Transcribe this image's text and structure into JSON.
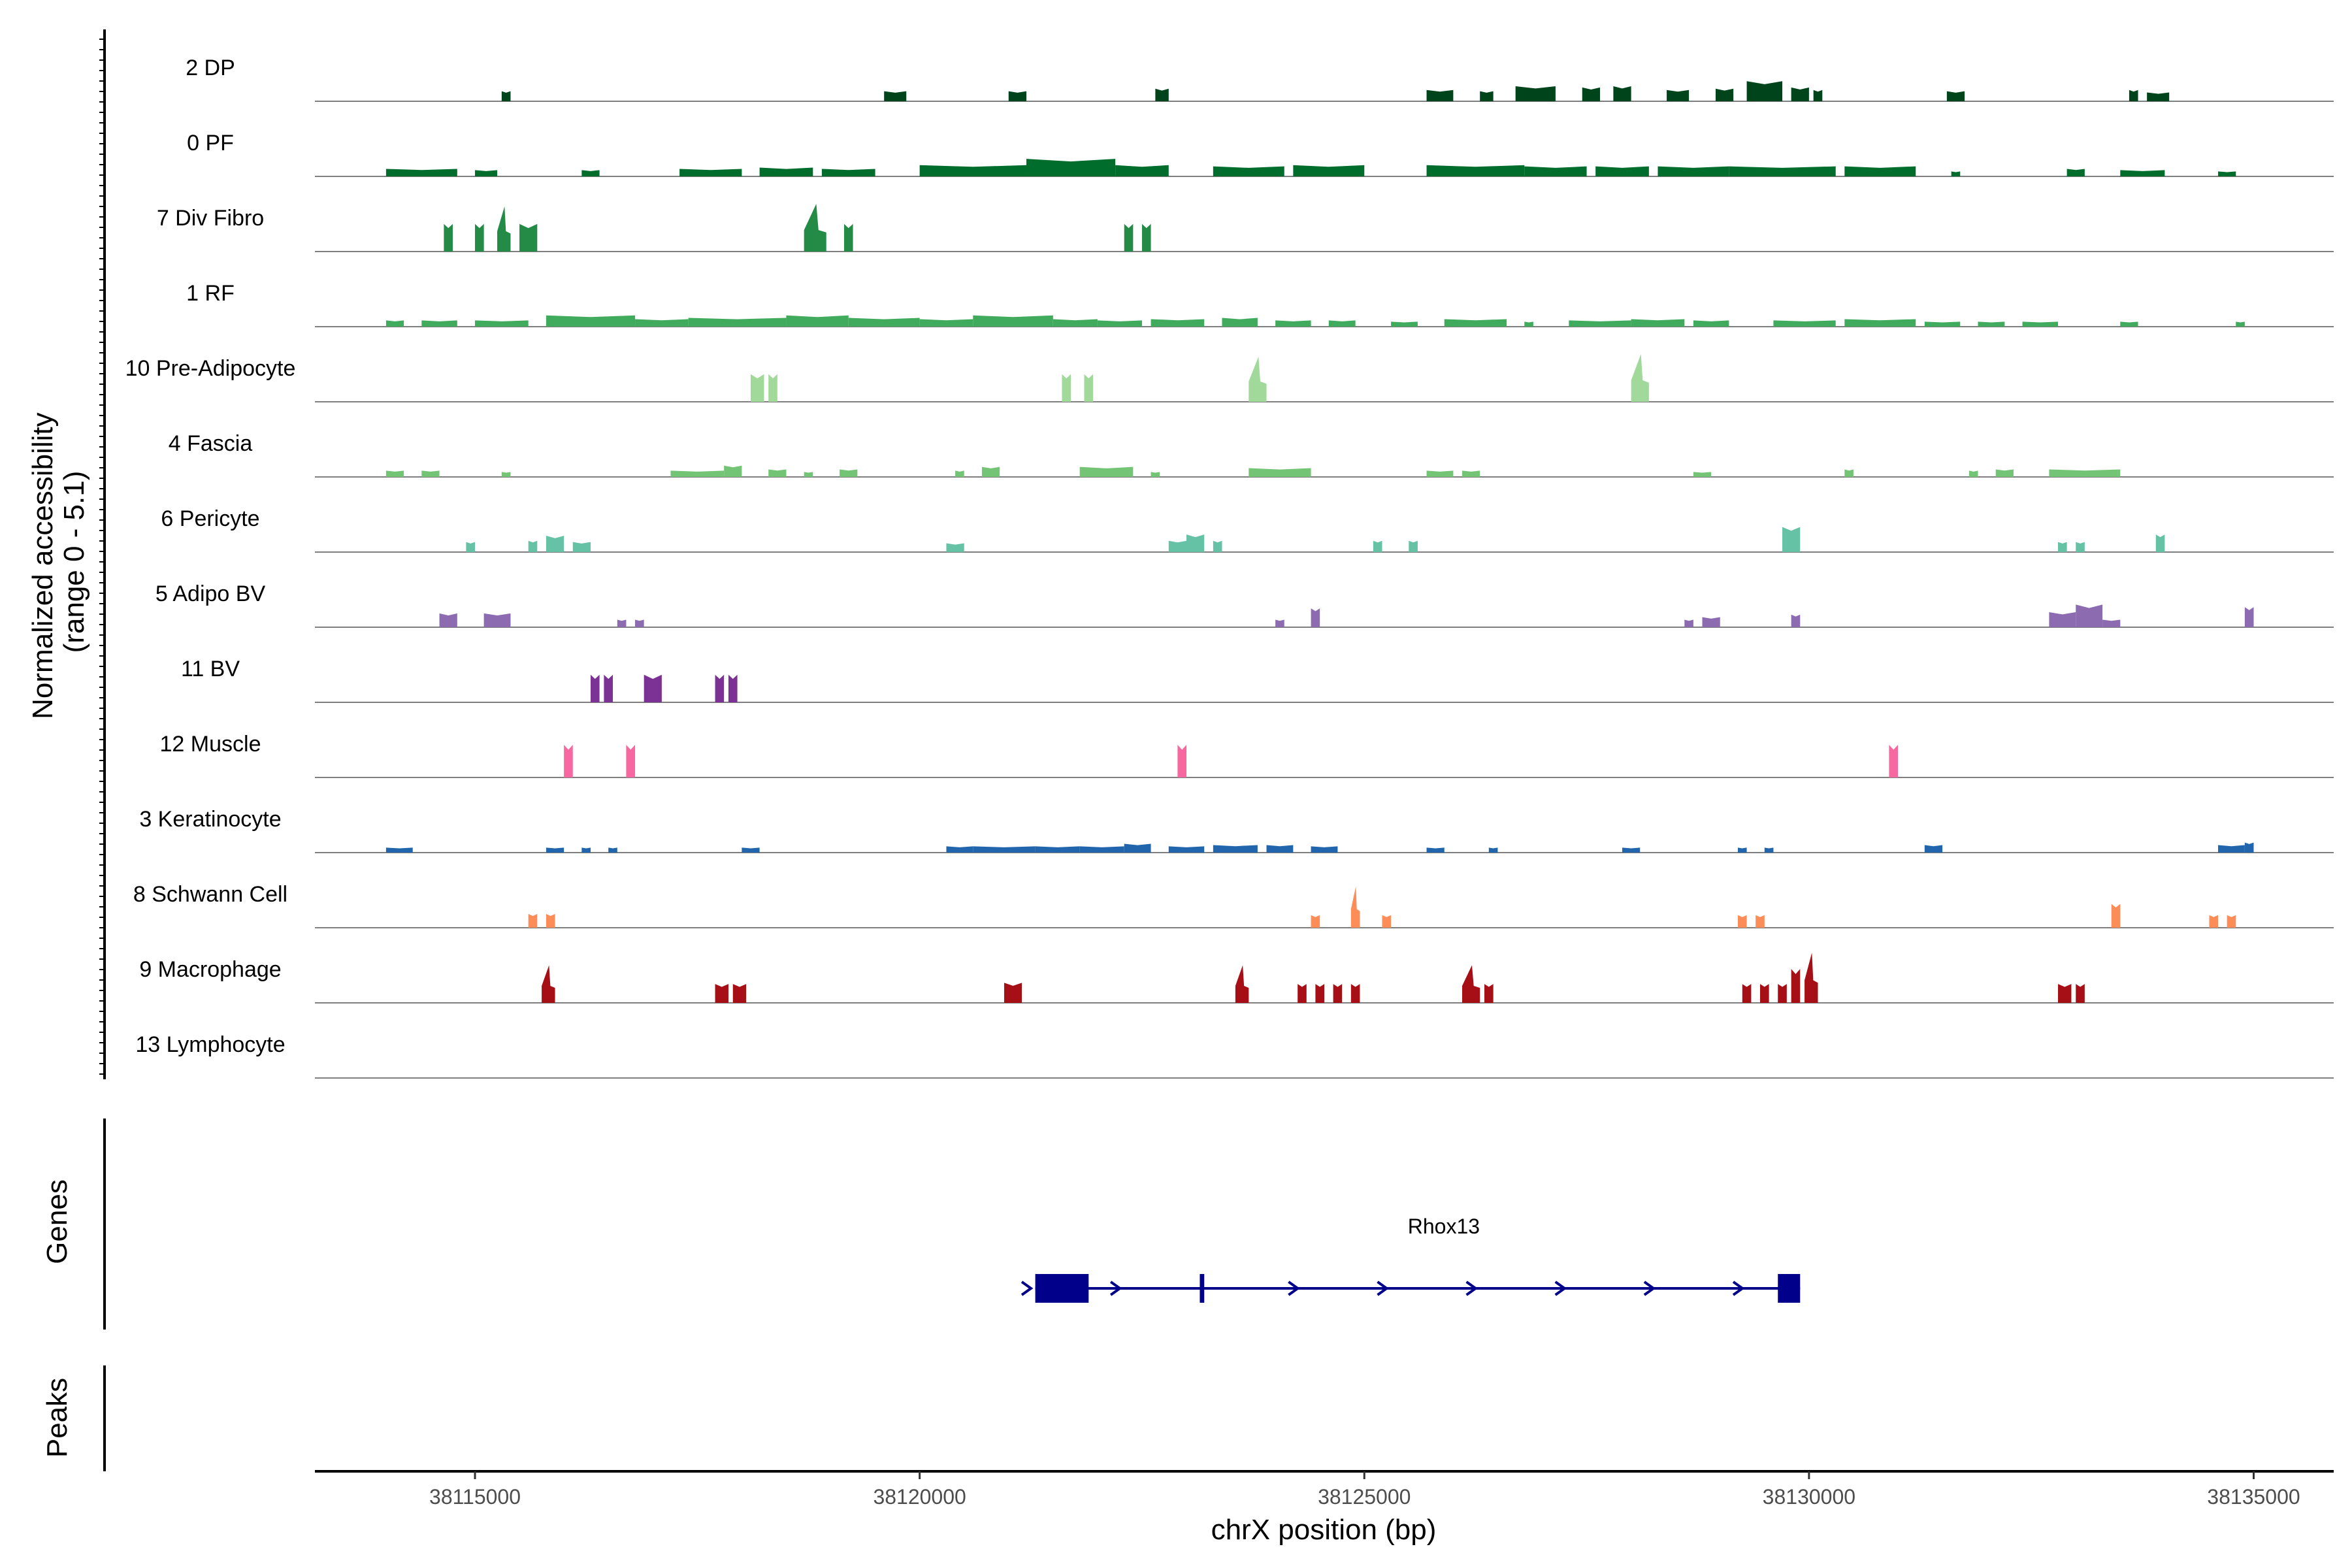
{
  "chart_data": {
    "type": "area",
    "title": "",
    "xlabel": "chrX position (bp)",
    "ylabel": "Normalized accessibility\n(range 0 - 5.1)",
    "ylabel_lines": [
      "Normalized accessibility",
      "(range 0 - 5.1)"
    ],
    "y_range": [
      0,
      5.1
    ],
    "xlim": [
      38113200,
      38135900
    ],
    "x_ticks": [
      38115000,
      38120000,
      38125000,
      38130000,
      38135000
    ],
    "x_tick_labels": [
      "38115000",
      "38120000",
      "38125000",
      "38130000",
      "38135000"
    ],
    "panel_labels": {
      "genes": "Genes",
      "peaks": "Peaks"
    },
    "tracks": [
      {
        "name": "2 DP",
        "color": "#00441b",
        "peaks": [
          [
            38115300,
            38115400,
            0.8
          ],
          [
            38119600,
            38119850,
            0.8
          ],
          [
            38121000,
            38121200,
            0.8
          ],
          [
            38122650,
            38122800,
            1.0
          ],
          [
            38125700,
            38126000,
            0.9
          ],
          [
            38126300,
            38126450,
            0.8
          ],
          [
            38126700,
            38127150,
            1.2
          ],
          [
            38127450,
            38127650,
            1.1
          ],
          [
            38127800,
            38128000,
            1.2
          ],
          [
            38128400,
            38128650,
            0.9
          ],
          [
            38128950,
            38129150,
            1.0
          ],
          [
            38129300,
            38129700,
            1.6
          ],
          [
            38129800,
            38130000,
            1.1
          ],
          [
            38130050,
            38130150,
            0.9
          ],
          [
            38131550,
            38131750,
            0.8
          ],
          [
            38133600,
            38133700,
            0.9
          ],
          [
            38133800,
            38134050,
            0.7
          ]
        ]
      },
      {
        "name": "0 PF",
        "color": "#006d2c",
        "peaks": [
          [
            38114000,
            38114800,
            0.6
          ],
          [
            38115000,
            38115250,
            0.5
          ],
          [
            38116200,
            38116400,
            0.5
          ],
          [
            38117300,
            38118000,
            0.6
          ],
          [
            38118200,
            38118800,
            0.7
          ],
          [
            38118900,
            38119500,
            0.6
          ],
          [
            38120000,
            38121200,
            0.9
          ],
          [
            38121200,
            38122200,
            1.4
          ],
          [
            38122200,
            38122800,
            0.9
          ],
          [
            38123300,
            38124100,
            0.8
          ],
          [
            38124200,
            38125000,
            0.9
          ],
          [
            38125700,
            38126800,
            0.9
          ],
          [
            38126800,
            38127500,
            0.8
          ],
          [
            38127600,
            38128200,
            0.8
          ],
          [
            38128300,
            38129100,
            0.8
          ],
          [
            38129100,
            38130300,
            0.8
          ],
          [
            38130400,
            38131200,
            0.8
          ],
          [
            38131600,
            38131700,
            0.4
          ],
          [
            38132900,
            38133100,
            0.6
          ],
          [
            38133500,
            38134000,
            0.5
          ],
          [
            38134600,
            38134800,
            0.4
          ]
        ]
      },
      {
        "name": "7 Div Fibro",
        "color": "#238b45",
        "peaks": [
          [
            38114650,
            38114750,
            2.2
          ],
          [
            38115000,
            38115100,
            2.2
          ],
          [
            38115250,
            38115400,
            3.6
          ],
          [
            38115500,
            38115700,
            2.2
          ],
          [
            38118700,
            38118950,
            3.8
          ],
          [
            38119150,
            38119250,
            2.2
          ],
          [
            38122300,
            38122400,
            2.2
          ],
          [
            38122500,
            38122600,
            2.2
          ]
        ]
      },
      {
        "name": "1 RF",
        "color": "#41ab5d",
        "peaks": [
          [
            38114000,
            38114200,
            0.5
          ],
          [
            38114400,
            38114800,
            0.5
          ],
          [
            38115000,
            38115600,
            0.5
          ],
          [
            38115800,
            38116800,
            0.9
          ],
          [
            38116800,
            38117400,
            0.6
          ],
          [
            38117400,
            38118500,
            0.7
          ],
          [
            38118500,
            38119200,
            0.9
          ],
          [
            38119200,
            38120000,
            0.7
          ],
          [
            38120000,
            38120600,
            0.6
          ],
          [
            38120600,
            38121500,
            0.9
          ],
          [
            38121500,
            38122000,
            0.6
          ],
          [
            38122000,
            38122500,
            0.5
          ],
          [
            38122600,
            38123200,
            0.6
          ],
          [
            38123400,
            38123800,
            0.7
          ],
          [
            38124000,
            38124400,
            0.5
          ],
          [
            38124600,
            38124900,
            0.5
          ],
          [
            38125300,
            38125600,
            0.4
          ],
          [
            38125900,
            38126600,
            0.6
          ],
          [
            38126800,
            38126900,
            0.4
          ],
          [
            38127300,
            38128000,
            0.5
          ],
          [
            38128000,
            38128600,
            0.6
          ],
          [
            38128700,
            38129100,
            0.5
          ],
          [
            38129600,
            38130300,
            0.5
          ],
          [
            38130400,
            38131200,
            0.6
          ],
          [
            38131300,
            38131700,
            0.4
          ],
          [
            38131900,
            38132200,
            0.4
          ],
          [
            38132400,
            38132800,
            0.4
          ],
          [
            38133500,
            38133700,
            0.4
          ],
          [
            38134800,
            38134900,
            0.4
          ]
        ]
      },
      {
        "name": "10 Pre-Adipocyte",
        "color": "#a1d99b",
        "peaks": [
          [
            38118100,
            38118250,
            2.2
          ],
          [
            38118300,
            38118400,
            2.2
          ],
          [
            38121600,
            38121700,
            2.2
          ],
          [
            38121850,
            38121950,
            2.2
          ],
          [
            38123700,
            38123900,
            3.6
          ],
          [
            38128000,
            38128200,
            3.8
          ]
        ]
      },
      {
        "name": "4 Fascia",
        "color": "#74c476",
        "peaks": [
          [
            38114000,
            38114200,
            0.5
          ],
          [
            38114400,
            38114600,
            0.5
          ],
          [
            38115300,
            38115400,
            0.4
          ],
          [
            38117200,
            38117800,
            0.5
          ],
          [
            38117800,
            38118000,
            0.9
          ],
          [
            38118300,
            38118500,
            0.6
          ],
          [
            38118700,
            38118800,
            0.4
          ],
          [
            38119100,
            38119300,
            0.6
          ],
          [
            38120400,
            38120500,
            0.5
          ],
          [
            38120700,
            38120900,
            0.8
          ],
          [
            38121800,
            38122400,
            0.8
          ],
          [
            38122600,
            38122700,
            0.4
          ],
          [
            38123700,
            38124400,
            0.7
          ],
          [
            38125700,
            38126000,
            0.5
          ],
          [
            38126100,
            38126300,
            0.5
          ],
          [
            38128700,
            38128900,
            0.4
          ],
          [
            38130400,
            38130500,
            0.6
          ],
          [
            38131800,
            38131900,
            0.5
          ],
          [
            38132100,
            38132300,
            0.6
          ],
          [
            38132700,
            38133500,
            0.6
          ]
        ]
      },
      {
        "name": "6 Pericyte",
        "color": "#66c2a4",
        "peaks": [
          [
            38114900,
            38115000,
            0.8
          ],
          [
            38115600,
            38115700,
            0.9
          ],
          [
            38115800,
            38116000,
            1.3
          ],
          [
            38116100,
            38116300,
            0.8
          ],
          [
            38120300,
            38120500,
            0.7
          ],
          [
            38122800,
            38123000,
            0.9
          ],
          [
            38123000,
            38123200,
            1.4
          ],
          [
            38123300,
            38123400,
            0.9
          ],
          [
            38125100,
            38125200,
            0.9
          ],
          [
            38125500,
            38125600,
            0.9
          ],
          [
            38129700,
            38129900,
            2.0
          ],
          [
            38132800,
            38132900,
            0.8
          ],
          [
            38133000,
            38133100,
            0.8
          ],
          [
            38133900,
            38134000,
            1.4
          ]
        ]
      },
      {
        "name": "5 Adipo BV",
        "color": "#8c6bb1",
        "peaks": [
          [
            38114600,
            38114800,
            1.1
          ],
          [
            38115100,
            38115400,
            1.1
          ],
          [
            38116600,
            38116700,
            0.6
          ],
          [
            38116800,
            38116900,
            0.6
          ],
          [
            38124000,
            38124100,
            0.6
          ],
          [
            38124400,
            38124500,
            1.5
          ],
          [
            38128600,
            38128700,
            0.6
          ],
          [
            38128800,
            38129000,
            0.8
          ],
          [
            38129800,
            38129900,
            1.0
          ],
          [
            38132700,
            38133000,
            1.2
          ],
          [
            38133000,
            38133300,
            1.8
          ],
          [
            38133300,
            38133500,
            0.6
          ],
          [
            38134900,
            38135000,
            1.6
          ]
        ]
      },
      {
        "name": "11 BV",
        "color": "#7b3294",
        "peaks": [
          [
            38116300,
            38116400,
            2.2
          ],
          [
            38116450,
            38116550,
            2.2
          ],
          [
            38116900,
            38117100,
            2.2
          ],
          [
            38117700,
            38117800,
            2.2
          ],
          [
            38117850,
            38117950,
            2.2
          ]
        ]
      },
      {
        "name": "12 Muscle",
        "color": "#f768a1",
        "peaks": [
          [
            38116000,
            38116100,
            2.6
          ],
          [
            38116700,
            38116800,
            2.6
          ],
          [
            38122900,
            38123000,
            2.6
          ],
          [
            38130900,
            38131000,
            2.6
          ]
        ]
      },
      {
        "name": "3 Keratinocyte",
        "color": "#2166ac",
        "peaks": [
          [
            38114000,
            38114300,
            0.4
          ],
          [
            38115800,
            38116000,
            0.4
          ],
          [
            38116200,
            38116300,
            0.4
          ],
          [
            38116500,
            38116600,
            0.4
          ],
          [
            38118000,
            38118200,
            0.4
          ],
          [
            38120300,
            38120600,
            0.5
          ],
          [
            38120600,
            38121300,
            0.5
          ],
          [
            38121300,
            38121800,
            0.5
          ],
          [
            38121800,
            38122300,
            0.5
          ],
          [
            38122300,
            38122600,
            0.7
          ],
          [
            38122800,
            38123200,
            0.5
          ],
          [
            38123300,
            38123800,
            0.6
          ],
          [
            38123900,
            38124200,
            0.6
          ],
          [
            38124400,
            38124700,
            0.5
          ],
          [
            38125700,
            38125900,
            0.4
          ],
          [
            38126400,
            38126500,
            0.4
          ],
          [
            38127900,
            38128100,
            0.4
          ],
          [
            38129200,
            38129300,
            0.4
          ],
          [
            38129500,
            38129600,
            0.4
          ],
          [
            38131300,
            38131500,
            0.6
          ],
          [
            38134600,
            38134900,
            0.6
          ],
          [
            38134900,
            38135000,
            0.8
          ]
        ]
      },
      {
        "name": "8 Schwann Cell",
        "color": "#fc8d59",
        "peaks": [
          [
            38115600,
            38115700,
            1.1
          ],
          [
            38115800,
            38115900,
            1.1
          ],
          [
            38124400,
            38124500,
            1.0
          ],
          [
            38124850,
            38124950,
            3.3
          ],
          [
            38125200,
            38125300,
            1.0
          ],
          [
            38129200,
            38129300,
            1.0
          ],
          [
            38129400,
            38129500,
            1.0
          ],
          [
            38133400,
            38133500,
            1.9
          ],
          [
            38134500,
            38134600,
            1.0
          ],
          [
            38134700,
            38134800,
            1.0
          ]
        ]
      },
      {
        "name": "9 Macrophage",
        "color": "#a50f15",
        "peaks": [
          [
            38115750,
            38115900,
            3.0
          ],
          [
            38117700,
            38117850,
            1.5
          ],
          [
            38117900,
            38118050,
            1.5
          ],
          [
            38120950,
            38121150,
            1.6
          ],
          [
            38123550,
            38123700,
            3.0
          ],
          [
            38124250,
            38124350,
            1.5
          ],
          [
            38124450,
            38124550,
            1.5
          ],
          [
            38124650,
            38124750,
            1.5
          ],
          [
            38124850,
            38124950,
            1.5
          ],
          [
            38126100,
            38126300,
            3.0
          ],
          [
            38126350,
            38126450,
            1.5
          ],
          [
            38129250,
            38129350,
            1.5
          ],
          [
            38129450,
            38129550,
            1.5
          ],
          [
            38129650,
            38129750,
            1.5
          ],
          [
            38129800,
            38129900,
            2.7
          ],
          [
            38129950,
            38130100,
            4.0
          ],
          [
            38132800,
            38132950,
            1.5
          ],
          [
            38133000,
            38133100,
            1.5
          ]
        ]
      },
      {
        "name": "13 Lymphocyte",
        "color": "#636363",
        "peaks": []
      }
    ],
    "gene": {
      "name": "Rhox13",
      "color": "#00008b",
      "start": 38121300,
      "end": 38129900,
      "strand": "+",
      "exons": [
        [
          38121300,
          38121900
        ],
        [
          38123150,
          38123200
        ],
        [
          38129650,
          38129900
        ]
      ],
      "arrows": [
        38121200,
        38122200,
        38124200,
        38125200,
        38126200,
        38127200,
        38128200,
        38129200
      ]
    },
    "peaks": []
  }
}
